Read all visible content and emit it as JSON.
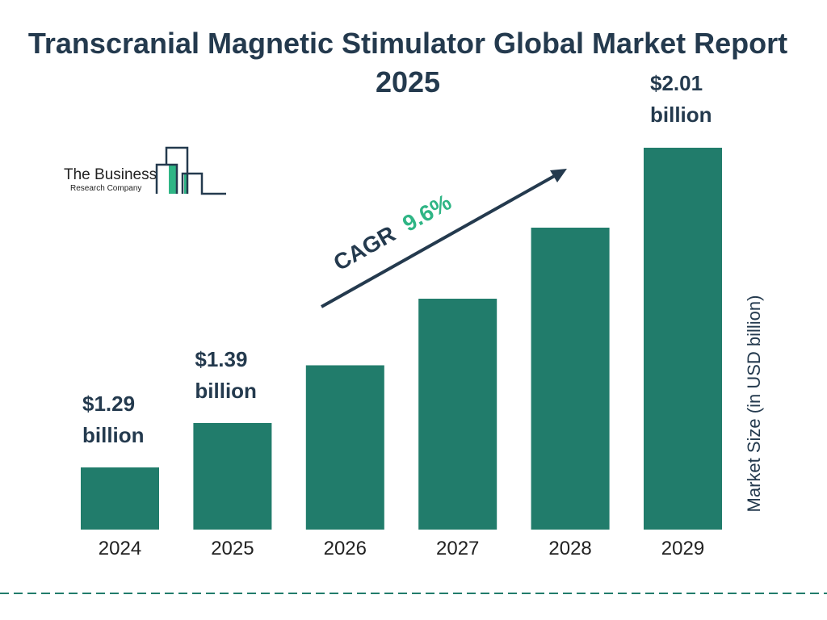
{
  "logo": {
    "line1": "The Business",
    "line2": "Research Company"
  },
  "chart_data": {
    "type": "bar",
    "title": "Transcranial Magnetic Stimulator Global Market Report 2025",
    "categories": [
      "2024",
      "2025",
      "2026",
      "2027",
      "2028",
      "2029"
    ],
    "values": [
      1.29,
      1.39,
      1.52,
      1.67,
      1.83,
      2.01
    ],
    "data_labels": [
      [
        "$1.29",
        "billion"
      ],
      [
        "$1.39",
        "billion"
      ],
      null,
      null,
      null,
      [
        "$2.01",
        "billion"
      ]
    ],
    "ylabel": "Market Size (in USD billion)",
    "xlabel": "",
    "grid": false,
    "bar_color": "#217c6b",
    "annotation": {
      "prefix": "CAGR",
      "value": "9.6%",
      "value_color": "#2fb585",
      "text_color": "#243a4e"
    }
  }
}
